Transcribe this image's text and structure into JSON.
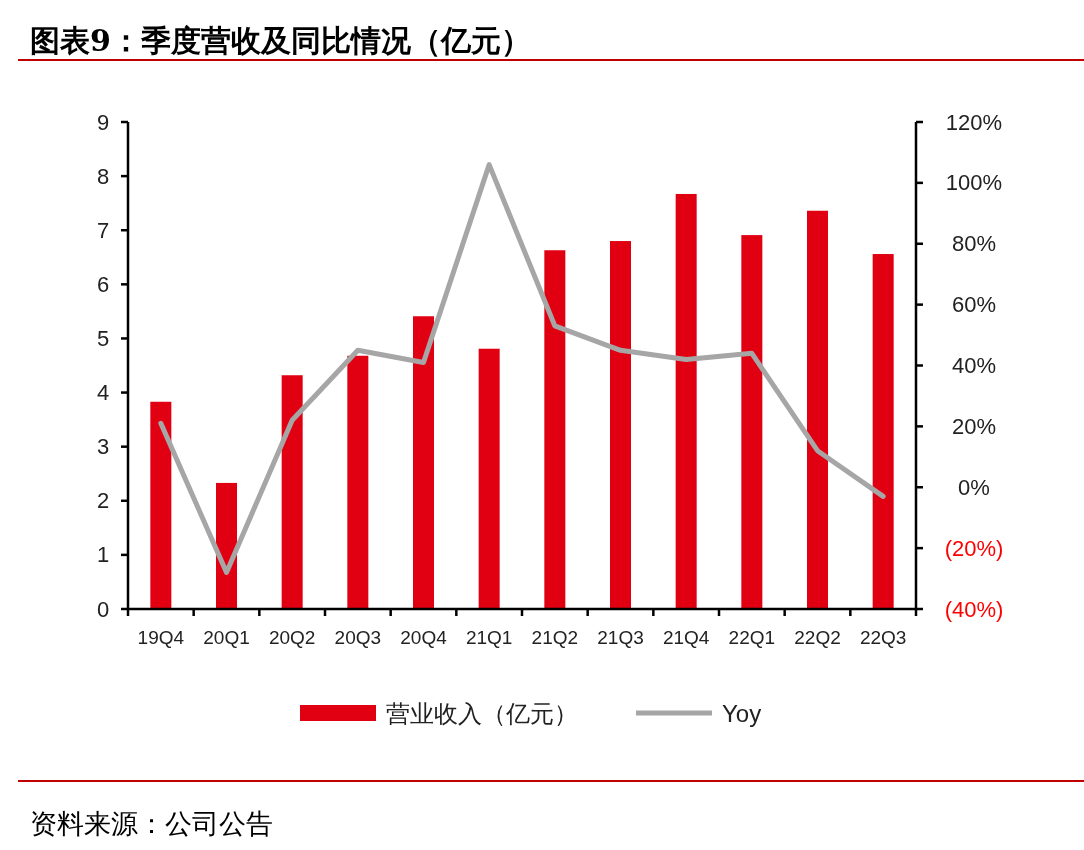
{
  "chart_data": {
    "type": "bar",
    "title": "图表9：季度营收及同比情况（亿元）",
    "categories": [
      "19Q4",
      "20Q1",
      "20Q2",
      "20Q3",
      "20Q4",
      "21Q1",
      "21Q2",
      "21Q3",
      "21Q4",
      "22Q1",
      "22Q2",
      "22Q3"
    ],
    "series": [
      {
        "name": "营业收入（亿元）",
        "color": "#e10012",
        "values": [
          3.83,
          2.33,
          4.32,
          4.68,
          5.41,
          4.81,
          6.63,
          6.8,
          7.67,
          6.91,
          7.36,
          6.56
        ]
      },
      {
        "name": "Yoy",
        "type": "line",
        "axis": "y2",
        "color": "#a6a6a6",
        "values": [
          21,
          -28,
          22,
          45,
          41,
          106,
          53,
          45,
          42,
          44,
          12,
          -3
        ]
      }
    ],
    "ylim": [
      0,
      9
    ],
    "yticks": [
      0,
      1,
      2,
      3,
      4,
      5,
      6,
      7,
      8,
      9
    ],
    "y2lim": [
      -40,
      120
    ],
    "y2ticks": [
      {
        "value": -40,
        "label": "(40%)"
      },
      {
        "value": -20,
        "label": "(20%)"
      },
      {
        "value": 0,
        "label": "0%"
      },
      {
        "value": 20,
        "label": "20%"
      },
      {
        "value": 40,
        "label": "40%"
      },
      {
        "value": 60,
        "label": "60%"
      },
      {
        "value": 80,
        "label": "80%"
      },
      {
        "value": 100,
        "label": "100%"
      },
      {
        "value": 120,
        "label": "120%"
      }
    ],
    "grid": false,
    "legend": "bottom",
    "marker": "none",
    "line_style": "solid",
    "annotations": [
      "资料来源：公司公告"
    ]
  }
}
